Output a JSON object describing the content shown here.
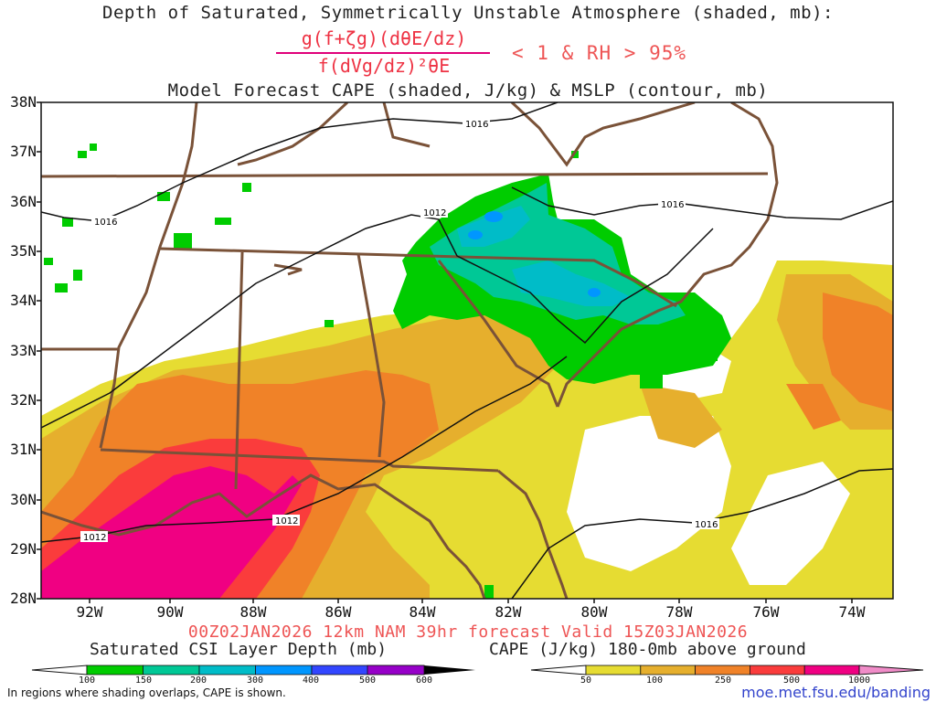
{
  "title_line1": "Depth of Saturated, Symmetrically Unstable Atmosphere (shaded, mb):",
  "formula_numerator": "g(f+ζg)(dθE/dz)",
  "formula_denominator": "f(dVg/dz)²θE",
  "formula_condition": "< 1 & RH > 95%",
  "title_line3": "Model Forecast CAPE (shaded, J/kg) & MSLP (contour, mb)",
  "lat_labels": [
    "38N",
    "37N",
    "36N",
    "35N",
    "34N",
    "33N",
    "32N",
    "31N",
    "30N",
    "29N",
    "28N"
  ],
  "lon_labels": [
    "92W",
    "90W",
    "88W",
    "86W",
    "84W",
    "82W",
    "80W",
    "78W",
    "76W",
    "74W"
  ],
  "isobar_labels": [
    "1016",
    "1016",
    "1012",
    "1016",
    "1012",
    "1012",
    "1016"
  ],
  "valid_line": "00Z02JAN2026 12km NAM 39hr forecast Valid 15Z03JAN2026",
  "csi_colorbar": {
    "title": "Saturated CSI Layer Depth (mb)",
    "ticks": [
      "100",
      "150",
      "200",
      "300",
      "400",
      "500",
      "600"
    ],
    "colors": [
      "#00cc00",
      "#00c896",
      "#00bcc8",
      "#0096ff",
      "#3246ff",
      "#3200c8",
      "#9600c8"
    ]
  },
  "cape_colorbar": {
    "title": "CAPE (J/kg) 180-0mb above ground",
    "ticks": [
      "50",
      "100",
      "250",
      "500",
      "1000"
    ],
    "colors": [
      "#e6dc32",
      "#e6af2d",
      "#f08228",
      "#fa3c3c",
      "#f00082"
    ]
  },
  "note": "In regions where shading overlaps, CAPE is shown.",
  "url": "moe.met.fsu.edu/banding"
}
